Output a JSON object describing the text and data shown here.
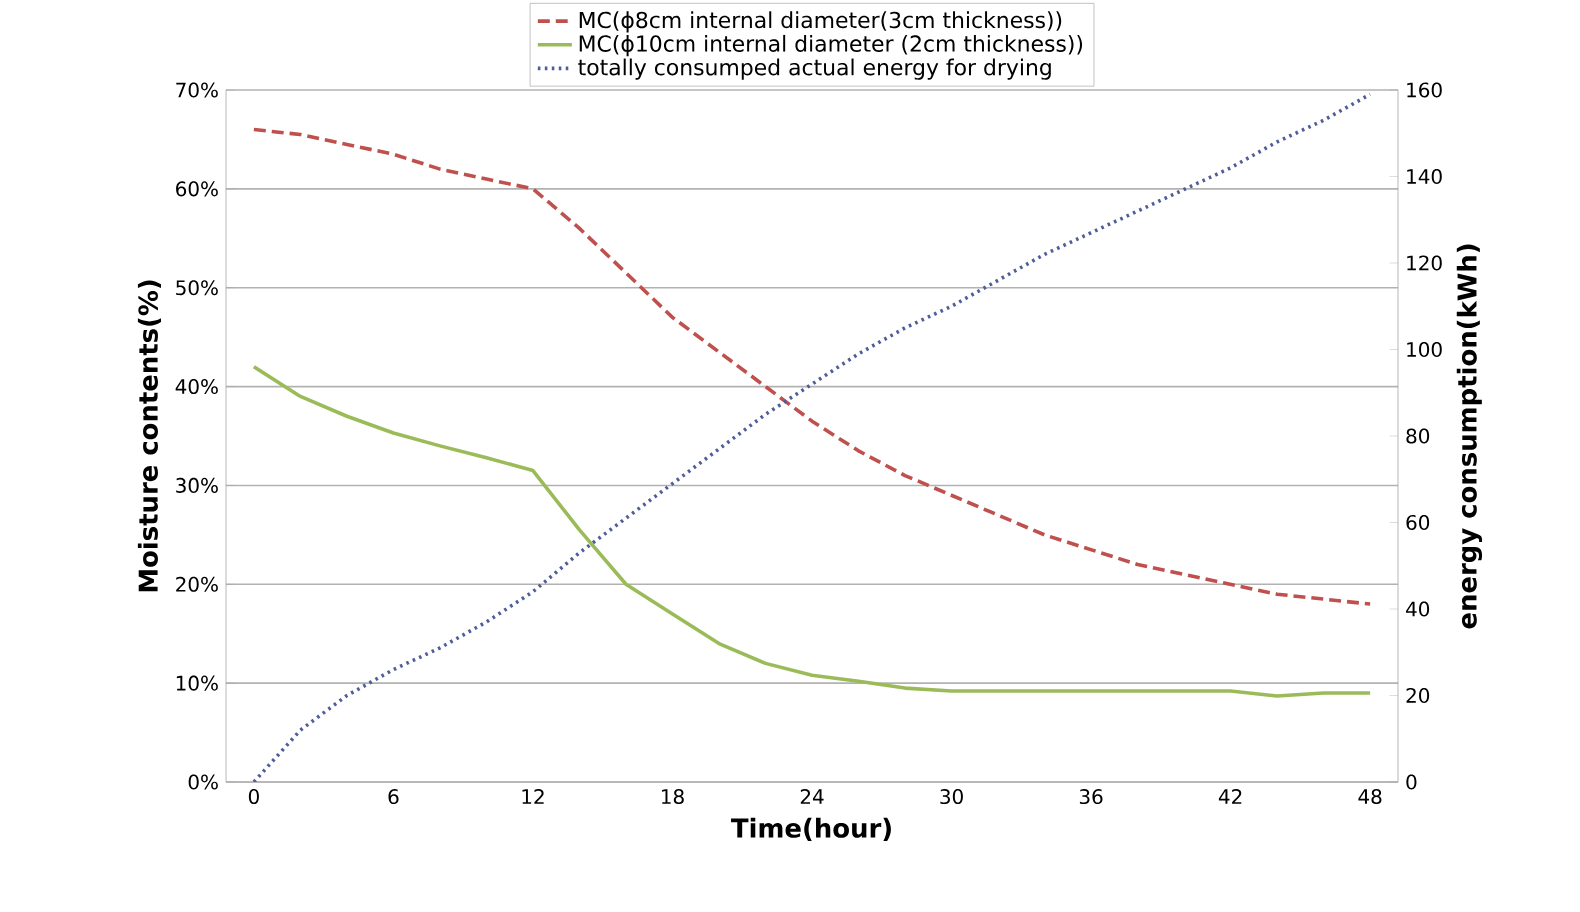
{
  "chart_data": {
    "type": "line",
    "xlabel": "Time(hour)",
    "ylabel": "Moisture contents(%)",
    "y2label": "energy consumption(kWh)",
    "x": [
      0,
      2,
      4,
      6,
      8,
      10,
      12,
      14,
      16,
      18,
      20,
      22,
      24,
      26,
      28,
      30,
      32,
      34,
      36,
      38,
      40,
      42,
      44,
      46,
      48
    ],
    "xlim": [
      -1.2,
      49.2
    ],
    "xticks": [
      0,
      6,
      12,
      18,
      24,
      30,
      36,
      42,
      48
    ],
    "ylim": [
      0,
      70
    ],
    "yticks": [
      {
        "value": 0,
        "label": "0%"
      },
      {
        "value": 10,
        "label": "10%"
      },
      {
        "value": 20,
        "label": "20%"
      },
      {
        "value": 30,
        "label": "30%"
      },
      {
        "value": 40,
        "label": "40%"
      },
      {
        "value": 50,
        "label": "50%"
      },
      {
        "value": 60,
        "label": "60%"
      },
      {
        "value": 70,
        "label": "70%"
      }
    ],
    "y2lim": [
      0,
      160
    ],
    "y2ticks": [
      0,
      20,
      40,
      60,
      80,
      100,
      120,
      140,
      160
    ],
    "grid": "y",
    "legend": "top",
    "marker": "none",
    "series": [
      {
        "name": "MC(ϕ8cm internal diameter(3cm thickness))",
        "color": "#c0504d",
        "line_style": "dashed",
        "values": [
          66,
          65.5,
          64.5,
          63.5,
          62,
          61,
          60,
          56,
          51.5,
          47,
          43.5,
          40,
          36.5,
          33.5,
          31,
          29,
          27,
          25,
          23.5,
          22,
          21,
          20,
          19,
          18.5,
          18
        ]
      },
      {
        "name": "MC(ϕ10cm internal diameter (2cm thickness))",
        "color": "#9bbb59",
        "line_style": "solid",
        "values": [
          42,
          39,
          37,
          35.3,
          34,
          32.8,
          31.5,
          25.5,
          20,
          17,
          14,
          12,
          10.8,
          10.2,
          9.5,
          9.2,
          9.2,
          9.2,
          9.2,
          9.2,
          9.2,
          9.2,
          8.7,
          9,
          9
        ]
      },
      {
        "name": "totally consumped actual energy for drying",
        "color": "#4f5d9a",
        "line_style": "dotted",
        "axis": "y2",
        "values": [
          0,
          12,
          20,
          26,
          31,
          37,
          44,
          53,
          61,
          69,
          77,
          85,
          92,
          99,
          105,
          110,
          116,
          122,
          127,
          132,
          137,
          142,
          148,
          153,
          159
        ]
      }
    ]
  }
}
